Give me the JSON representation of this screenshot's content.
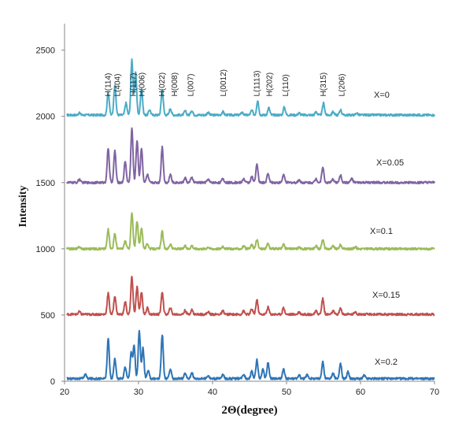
{
  "chart_data": {
    "type": "line",
    "title": "",
    "xlabel": "2Θ(degree)",
    "ylabel": "Intensity",
    "xlim": [
      20,
      70
    ],
    "ylim": [
      0,
      2700
    ],
    "x_ticks": [
      20,
      30,
      40,
      50,
      60,
      70
    ],
    "y_ticks": [
      0,
      500,
      1000,
      1500,
      2000,
      2500
    ],
    "grid": false,
    "legend": "inline labels at right of each curve",
    "peak_labels": [
      {
        "text": "H(114)",
        "x": 25.9
      },
      {
        "text": "L(404)",
        "x": 27.2
      },
      {
        "text": "H(117)",
        "x": 29.3
      },
      {
        "text": "H(006)",
        "x": 30.5
      },
      {
        "text": "H(022)",
        "x": 33.2
      },
      {
        "text": "H(008)",
        "x": 34.9
      },
      {
        "text": "L(007)",
        "x": 37.1
      },
      {
        "text": "L(0012)",
        "x": 41.5
      },
      {
        "text": "L(1113)",
        "x": 46.0
      },
      {
        "text": "H(202)",
        "x": 47.7
      },
      {
        "text": "L(110)",
        "x": 49.9
      },
      {
        "text": "H(315)",
        "x": 55.0
      },
      {
        "text": "L(206)",
        "x": 57.5
      }
    ],
    "series": [
      {
        "name": "X=0",
        "color": "#4BACC6",
        "baseline": 2010,
        "peaks": [
          [
            22.0,
            15
          ],
          [
            25.9,
            170
          ],
          [
            26.8,
            230
          ],
          [
            28.3,
            90
          ],
          [
            29.1,
            420
          ],
          [
            29.6,
            330
          ],
          [
            30.4,
            200
          ],
          [
            31.5,
            40
          ],
          [
            33.2,
            190
          ],
          [
            34.3,
            50
          ],
          [
            36.3,
            30
          ],
          [
            37.2,
            35
          ],
          [
            39.4,
            20
          ],
          [
            41.4,
            25
          ],
          [
            44.0,
            20
          ],
          [
            45.3,
            35
          ],
          [
            46.1,
            110
          ],
          [
            47.6,
            55
          ],
          [
            49.7,
            60
          ],
          [
            51.7,
            15
          ],
          [
            54.0,
            25
          ],
          [
            55.0,
            90
          ],
          [
            56.3,
            25
          ],
          [
            57.3,
            40
          ],
          [
            59.5,
            15
          ]
        ]
      },
      {
        "name": "X=0.05",
        "color": "#8064A2",
        "baseline": 1500,
        "peaks": [
          [
            22.0,
            25
          ],
          [
            25.9,
            260
          ],
          [
            26.8,
            240
          ],
          [
            28.2,
            160
          ],
          [
            29.1,
            410
          ],
          [
            29.8,
            320
          ],
          [
            30.4,
            260
          ],
          [
            31.2,
            60
          ],
          [
            33.2,
            270
          ],
          [
            34.3,
            60
          ],
          [
            36.3,
            35
          ],
          [
            37.2,
            40
          ],
          [
            39.4,
            25
          ],
          [
            41.4,
            30
          ],
          [
            44.2,
            30
          ],
          [
            45.3,
            45
          ],
          [
            46.0,
            140
          ],
          [
            47.5,
            70
          ],
          [
            49.6,
            60
          ],
          [
            51.7,
            20
          ],
          [
            54.0,
            30
          ],
          [
            54.9,
            120
          ],
          [
            56.3,
            25
          ],
          [
            57.3,
            55
          ],
          [
            58.8,
            30
          ]
        ]
      },
      {
        "name": "X=0.1",
        "color": "#9BBB59",
        "baseline": 1000,
        "peaks": [
          [
            22.0,
            15
          ],
          [
            25.9,
            145
          ],
          [
            26.8,
            115
          ],
          [
            28.2,
            60
          ],
          [
            29.1,
            270
          ],
          [
            29.8,
            210
          ],
          [
            30.4,
            160
          ],
          [
            31.2,
            40
          ],
          [
            33.2,
            130
          ],
          [
            34.3,
            35
          ],
          [
            36.3,
            20
          ],
          [
            37.2,
            25
          ],
          [
            39.4,
            15
          ],
          [
            41.4,
            20
          ],
          [
            44.2,
            20
          ],
          [
            45.3,
            30
          ],
          [
            46.0,
            70
          ],
          [
            47.5,
            40
          ],
          [
            49.6,
            35
          ],
          [
            51.7,
            12
          ],
          [
            54.0,
            20
          ],
          [
            54.9,
            75
          ],
          [
            56.3,
            20
          ],
          [
            57.3,
            30
          ],
          [
            59.3,
            15
          ]
        ]
      },
      {
        "name": "X=0.15",
        "color": "#C0504D",
        "baseline": 505,
        "peaks": [
          [
            22.0,
            20
          ],
          [
            25.9,
            160
          ],
          [
            26.8,
            140
          ],
          [
            28.2,
            95
          ],
          [
            29.1,
            285
          ],
          [
            29.8,
            205
          ],
          [
            30.4,
            170
          ],
          [
            31.2,
            50
          ],
          [
            33.2,
            170
          ],
          [
            34.3,
            50
          ],
          [
            36.3,
            30
          ],
          [
            37.2,
            35
          ],
          [
            39.4,
            20
          ],
          [
            41.4,
            25
          ],
          [
            44.2,
            25
          ],
          [
            45.3,
            40
          ],
          [
            46.0,
            110
          ],
          [
            47.5,
            55
          ],
          [
            49.6,
            50
          ],
          [
            51.7,
            18
          ],
          [
            54.0,
            25
          ],
          [
            54.9,
            120
          ],
          [
            56.3,
            25
          ],
          [
            57.3,
            45
          ],
          [
            59.3,
            20
          ]
        ]
      },
      {
        "name": "X=0.2",
        "color": "#2E75B6",
        "baseline": 20,
        "peaks": [
          [
            22.8,
            35
          ],
          [
            25.9,
            300
          ],
          [
            26.8,
            150
          ],
          [
            28.2,
            90
          ],
          [
            29.0,
            200
          ],
          [
            29.4,
            250
          ],
          [
            30.1,
            360
          ],
          [
            30.6,
            230
          ],
          [
            31.3,
            60
          ],
          [
            33.2,
            330
          ],
          [
            34.3,
            70
          ],
          [
            36.3,
            40
          ],
          [
            37.2,
            45
          ],
          [
            39.4,
            25
          ],
          [
            41.4,
            30
          ],
          [
            44.2,
            35
          ],
          [
            45.3,
            55
          ],
          [
            46.0,
            140
          ],
          [
            46.8,
            70
          ],
          [
            47.5,
            120
          ],
          [
            49.6,
            70
          ],
          [
            51.7,
            25
          ],
          [
            52.8,
            30
          ],
          [
            54.9,
            130
          ],
          [
            56.3,
            40
          ],
          [
            57.3,
            110
          ],
          [
            58.3,
            50
          ],
          [
            60.5,
            25
          ]
        ]
      }
    ]
  }
}
